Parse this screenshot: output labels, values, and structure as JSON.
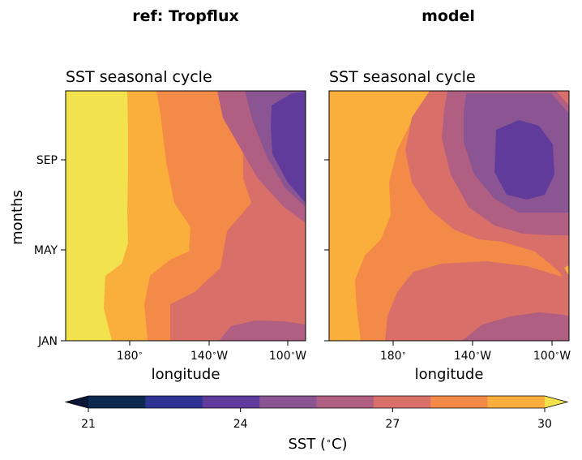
{
  "figure": {
    "left_title": "ref: Tropflux",
    "right_title": "model"
  },
  "chart_data": [
    {
      "type": "heatmap",
      "subtype": "filled-contour",
      "title": "SST seasonal cycle",
      "xlabel": "longitude",
      "ylabel": "months",
      "xticks": [
        {
          "value": 180,
          "label": "180$^\\circ$"
        },
        {
          "value": 220,
          "label": "140$^\\circ$W"
        },
        {
          "value": 260,
          "label": "100$^\\circ$W"
        }
      ],
      "yticks": [
        {
          "value": 0,
          "label": "JAN"
        },
        {
          "value": 4,
          "label": "MAY"
        },
        {
          "value": 8,
          "label": "SEP"
        }
      ],
      "xlim": [
        150,
        270
      ],
      "ylim": [
        0,
        11
      ],
      "x_band_values": [
        160,
        185,
        195,
        210,
        225,
        240,
        255,
        262,
        270
      ],
      "band_pattern": "warm pool (>29) west of ~160E; cold tongue (<23-24) east of 110W during SEP-NOV"
    },
    {
      "type": "heatmap",
      "subtype": "filled-contour",
      "title": "SST seasonal cycle",
      "xlabel": "longitude",
      "ylabel": "",
      "xticks": [
        {
          "value": 180,
          "label": "180$^\\circ$"
        },
        {
          "value": 220,
          "label": "140$^\\circ$W"
        },
        {
          "value": 260,
          "label": "100$^\\circ$W"
        }
      ],
      "yticks": [],
      "xlim": [
        150,
        270
      ],
      "ylim": [
        0,
        11
      ],
      "band_pattern": "model warm pool narrower; cold minimum (<23) centered near 110W around SEP"
    }
  ],
  "colorbar": {
    "label": "SST ($^\\circ$C)",
    "min": 21,
    "max": 30,
    "ticks": [
      21,
      24,
      27,
      30
    ],
    "colors": [
      "#0b1536",
      "#0c2a50",
      "#2e3394",
      "#613b9b",
      "#8a5592",
      "#b05e82",
      "#d96f69",
      "#f48a47",
      "#faae3c",
      "#f1e24e"
    ],
    "extend": "both"
  }
}
